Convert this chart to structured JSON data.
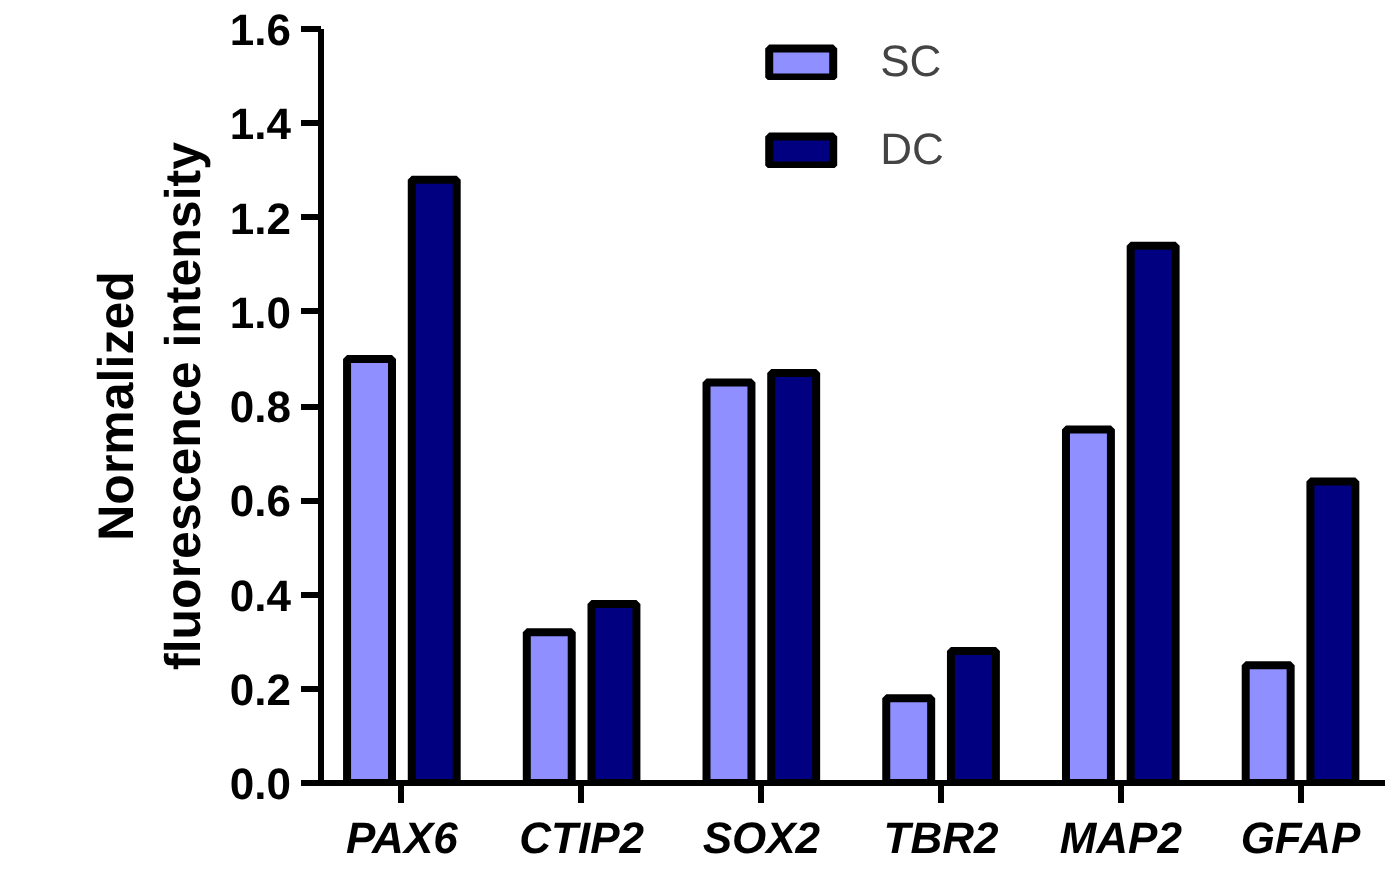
{
  "chart_data": {
    "type": "bar",
    "ylabel": "Normalized fluorescence intensity",
    "categories": [
      "PAX6",
      "CTIP2",
      "SOX2",
      "TBR2",
      "MAP2",
      "GFAP"
    ],
    "series": [
      {
        "name": "SC",
        "color": "#8f8fff",
        "values": [
          0.9,
          0.32,
          0.85,
          0.18,
          0.75,
          0.25
        ]
      },
      {
        "name": "DC",
        "color": "#000080",
        "values": [
          1.28,
          0.38,
          0.87,
          0.28,
          1.14,
          0.64
        ]
      }
    ],
    "ylim": [
      0,
      1.6
    ],
    "yticks": [
      {
        "value": 0,
        "label": "0.0"
      },
      0.2,
      0.4,
      0.6,
      0.8,
      {
        "value": 1,
        "label": "1.0"
      },
      1.2,
      1.4,
      1.6
    ],
    "grid": false,
    "legend": "top"
  }
}
